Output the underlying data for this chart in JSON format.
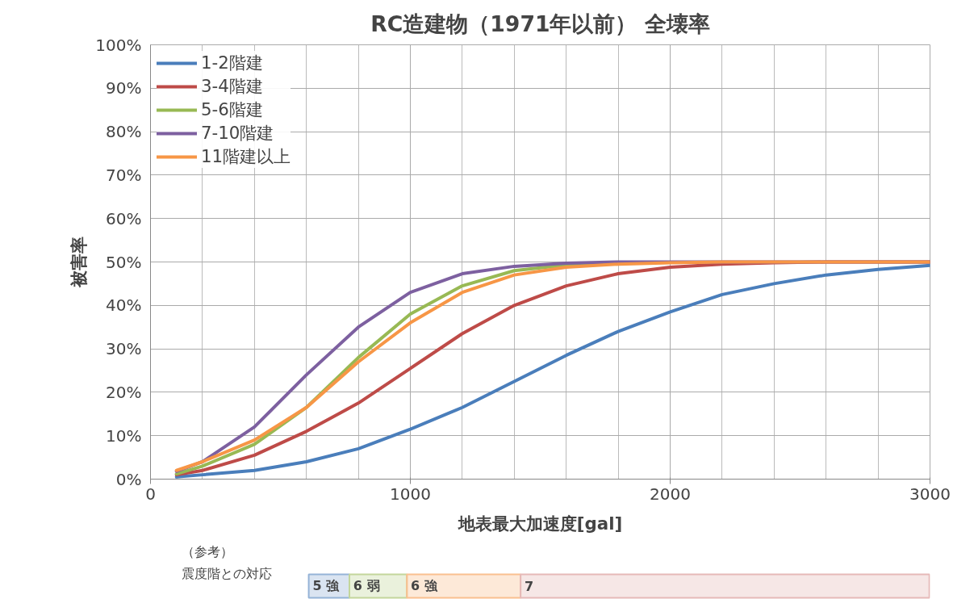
{
  "chart_data": [
    {
      "type": "line",
      "title": "RC造建物（1971年以前） 全壊率",
      "xlabel": "地表最大加速度[gal]",
      "ylabel": "被害率",
      "x": [
        100,
        200,
        400,
        600,
        800,
        1000,
        1200,
        1400,
        1600,
        1800,
        2000,
        2200,
        2400,
        2600,
        2800,
        3000
      ],
      "series": [
        {
          "name": "1-2階建",
          "color": "#4a7ebb",
          "values": [
            0.5,
            1,
            2,
            4,
            7,
            11.5,
            16.5,
            22.5,
            28.5,
            34,
            38.5,
            42.5,
            45,
            47,
            48.3,
            49.2
          ]
        },
        {
          "name": "3-4階建",
          "color": "#be4b48",
          "values": [
            1,
            2,
            5.5,
            11,
            17.5,
            25.5,
            33.5,
            40,
            44.5,
            47.3,
            48.8,
            49.5,
            49.8,
            50,
            50,
            50
          ]
        },
        {
          "name": "5-6階建",
          "color": "#98b954",
          "values": [
            1.2,
            3,
            8,
            16.5,
            28,
            38,
            44.5,
            48,
            49.3,
            49.8,
            null,
            null,
            null,
            null,
            null,
            null
          ]
        },
        {
          "name": "7-10階建",
          "color": "#7d60a0",
          "values": [
            1.8,
            4,
            12,
            24,
            35,
            43,
            47.3,
            49,
            49.7,
            50,
            50,
            50,
            50,
            50,
            50,
            50
          ]
        },
        {
          "name": "11階建以上",
          "color": "#f79646",
          "values": [
            2,
            4,
            9,
            16.5,
            27,
            36,
            43,
            47,
            48.8,
            49.5,
            49.8,
            50,
            50,
            50,
            50,
            50
          ]
        }
      ],
      "xlim": [
        0,
        3000
      ],
      "xticks": [
        0,
        1000,
        2000,
        3000
      ],
      "ylim": [
        0,
        100
      ],
      "yticks": [
        {
          "value": 0,
          "label": "0%"
        },
        {
          "value": 10,
          "label": "10%"
        },
        {
          "value": 20,
          "label": "20%"
        },
        {
          "value": 30,
          "label": "30%"
        },
        {
          "value": 40,
          "label": "40%"
        },
        {
          "value": 50,
          "label": "50%"
        },
        {
          "value": 60,
          "label": "60%"
        },
        {
          "value": 70,
          "label": "70%"
        },
        {
          "value": 80,
          "label": "80%"
        },
        {
          "value": 90,
          "label": "90%"
        },
        {
          "value": 100,
          "label": "100%"
        }
      ],
      "grid": true,
      "legend": "top left",
      "marker": "none",
      "line_style": "solid"
    },
    {
      "type": "other",
      "annotations": [
        "（参考）",
        "震度階との対応"
      ],
      "categories": [
        "5 強",
        "6 弱",
        "6 強",
        "7"
      ],
      "colors": [
        "#95b3d7",
        "#c3d69b",
        "#fac090",
        "#e6b9b8"
      ]
    }
  ]
}
